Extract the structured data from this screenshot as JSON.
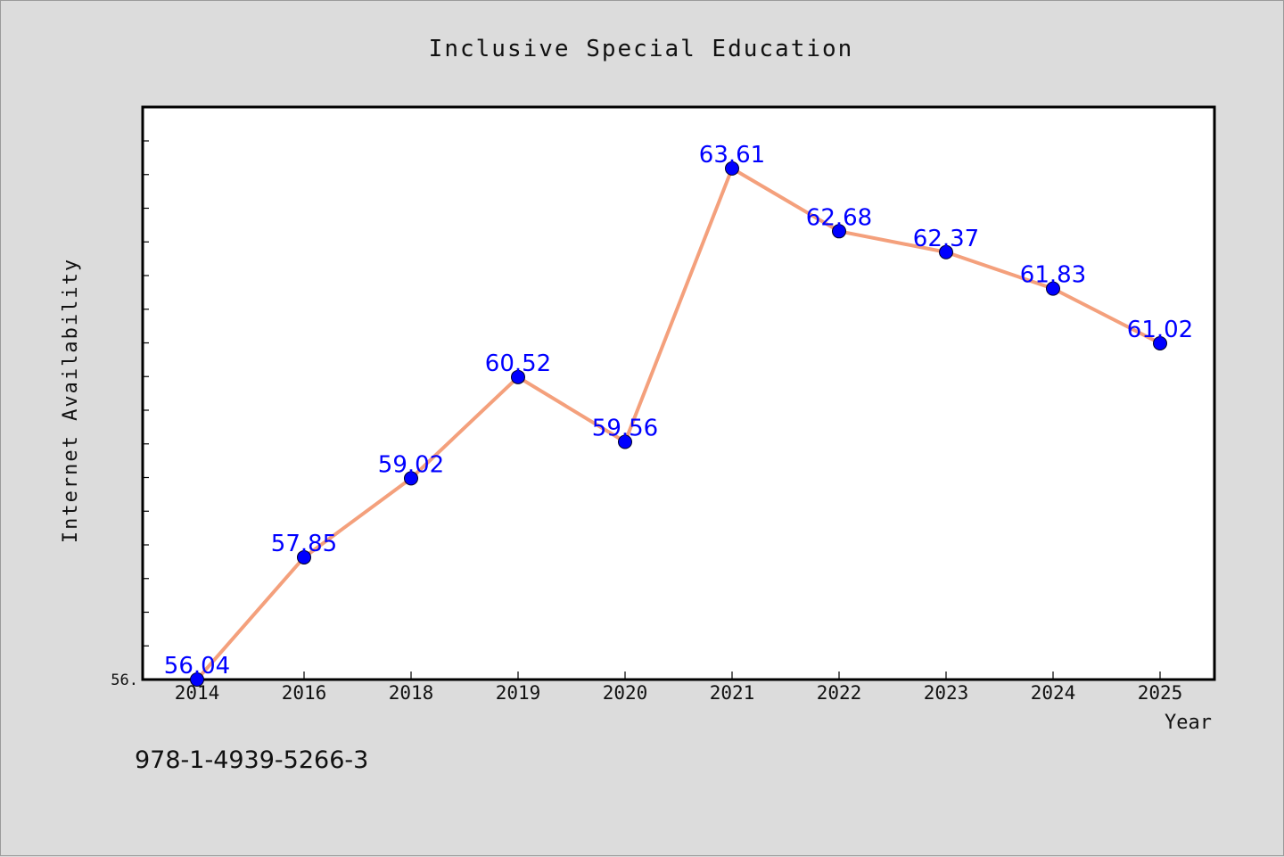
{
  "chart_data": {
    "type": "line",
    "title": "Inclusive Special Education",
    "xlabel": "Year",
    "ylabel": "Internet Availability",
    "categories": [
      "2014",
      "2016",
      "2018",
      "2019",
      "2020",
      "2021",
      "2022",
      "2023",
      "2024",
      "2025"
    ],
    "series": [
      {
        "values": [
          56.04,
          57.85,
          59.02,
          60.52,
          59.56,
          63.61,
          62.68,
          62.37,
          61.83,
          61.02
        ],
        "labels": [
          "56.04",
          "57.85",
          "59.02",
          "60.52",
          "59.56",
          "63.61",
          "62.68",
          "62.37",
          "61.83",
          "61.02"
        ]
      }
    ],
    "ylim": [
      56.04,
      64.52
    ],
    "y_tick_labels": [
      "56."
    ],
    "grid": false,
    "colors": {
      "line": "#f4a07c",
      "marker": "#0000ff",
      "label": "#0000ff",
      "background": "#dcdcdc",
      "plot": "#ffffff"
    }
  },
  "footer": {
    "code": "978-1-4939-5266-3"
  }
}
